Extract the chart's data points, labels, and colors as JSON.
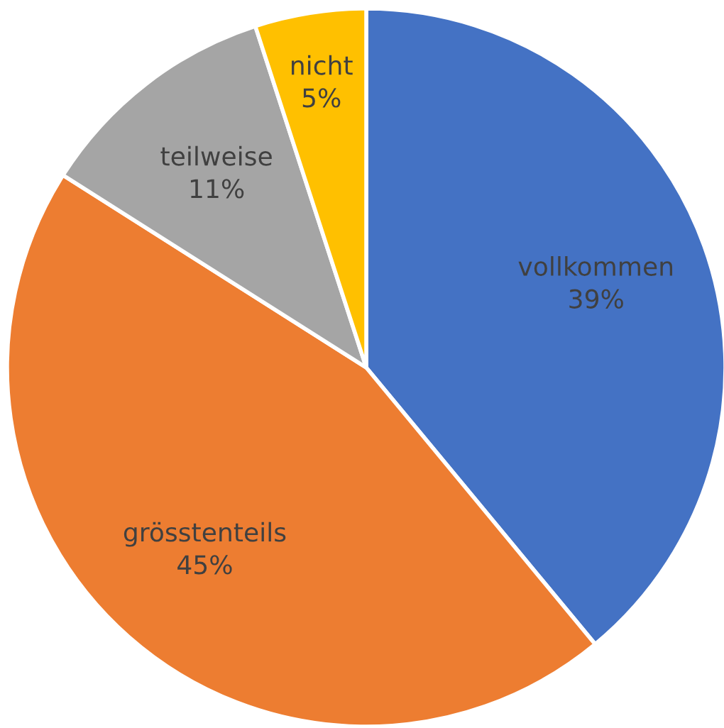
{
  "chart_data": {
    "type": "pie",
    "categories": [
      "vollkommen",
      "grösstenteils",
      "teilweise",
      "nicht"
    ],
    "values": [
      39,
      45,
      11,
      5
    ],
    "value_labels": [
      "39%",
      "45%",
      "11%",
      "5%"
    ],
    "colors": [
      "#4472c4",
      "#ed7d31",
      "#a5a5a5",
      "#ffc000"
    ],
    "legend": false
  }
}
